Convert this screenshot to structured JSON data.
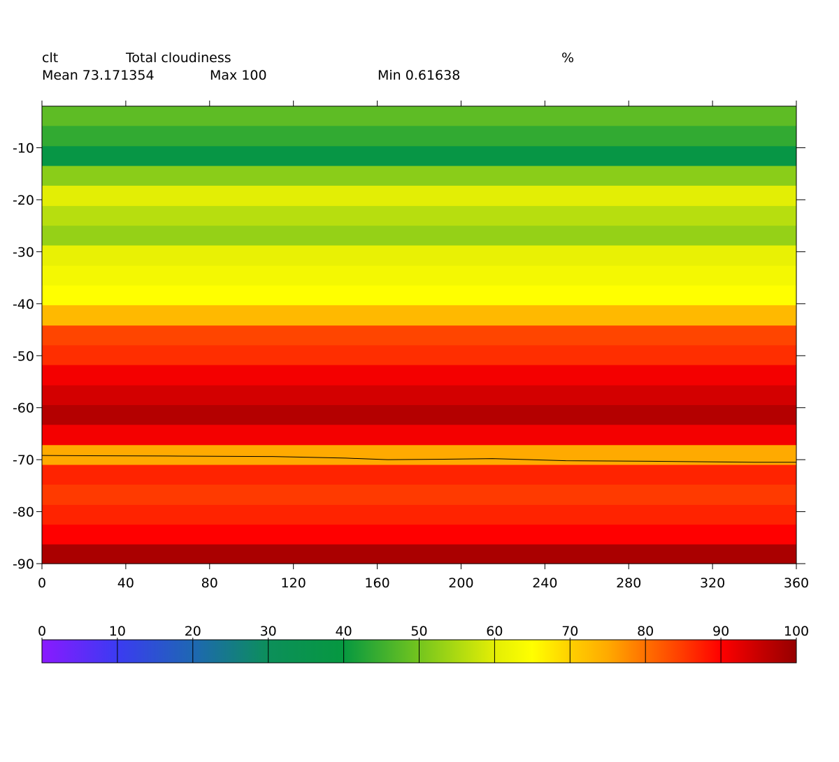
{
  "header": {
    "variable": "clt",
    "long_name": "Total cloudiness",
    "units": "%",
    "mean_label": "Mean 73.171354",
    "max_label": "Max 100",
    "min_label": "Min 0.61638"
  },
  "chart_data": {
    "type": "heatmap",
    "title": "Total cloudiness",
    "xlabel": "",
    "ylabel": "",
    "xlim": [
      0,
      360
    ],
    "ylim": [
      -90,
      -2
    ],
    "x_ticks": [
      0,
      40,
      80,
      120,
      160,
      200,
      240,
      280,
      320,
      360
    ],
    "y_ticks": [
      -10,
      -20,
      -30,
      -40,
      -50,
      -60,
      -70,
      -80,
      -90
    ],
    "bands": [
      {
        "lat_top": -2.0,
        "lat_bottom": -5.8,
        "value": 48
      },
      {
        "lat_top": -5.8,
        "lat_bottom": -9.7,
        "value": 44
      },
      {
        "lat_top": -9.7,
        "lat_bottom": -13.5,
        "value": 38
      },
      {
        "lat_top": -13.5,
        "lat_bottom": -17.3,
        "value": 52
      },
      {
        "lat_top": -17.3,
        "lat_bottom": -21.2,
        "value": 60
      },
      {
        "lat_top": -21.2,
        "lat_bottom": -25.0,
        "value": 56
      },
      {
        "lat_top": -25.0,
        "lat_bottom": -28.8,
        "value": 53
      },
      {
        "lat_top": -28.8,
        "lat_bottom": -32.7,
        "value": 61
      },
      {
        "lat_top": -32.7,
        "lat_bottom": -36.5,
        "value": 63
      },
      {
        "lat_top": -36.5,
        "lat_bottom": -40.3,
        "value": 65
      },
      {
        "lat_top": -40.3,
        "lat_bottom": -44.2,
        "value": 73
      },
      {
        "lat_top": -44.2,
        "lat_bottom": -48.0,
        "value": 84
      },
      {
        "lat_top": -48.0,
        "lat_bottom": -51.8,
        "value": 86
      },
      {
        "lat_top": -51.8,
        "lat_bottom": -55.7,
        "value": 91
      },
      {
        "lat_top": -55.7,
        "lat_bottom": -59.5,
        "value": 94
      },
      {
        "lat_top": -59.5,
        "lat_bottom": -63.3,
        "value": 97
      },
      {
        "lat_top": -63.3,
        "lat_bottom": -67.2,
        "value": 91
      },
      {
        "lat_top": -67.2,
        "lat_bottom": -71.0,
        "value": 75
      },
      {
        "lat_top": -71.0,
        "lat_bottom": -74.8,
        "value": 87
      },
      {
        "lat_top": -74.8,
        "lat_bottom": -78.7,
        "value": 85
      },
      {
        "lat_top": -78.7,
        "lat_bottom": -82.5,
        "value": 87
      },
      {
        "lat_top": -82.5,
        "lat_bottom": -86.3,
        "value": 90
      },
      {
        "lat_top": -86.3,
        "lat_bottom": -90.0,
        "value": 98
      }
    ],
    "coastline": [
      [
        0,
        -69.2
      ],
      [
        60,
        -69.3
      ],
      [
        110,
        -69.4
      ],
      [
        145,
        -69.7
      ],
      [
        165,
        -70.0
      ],
      [
        195,
        -69.9
      ],
      [
        215,
        -69.8
      ],
      [
        250,
        -70.2
      ],
      [
        290,
        -70.3
      ],
      [
        340,
        -70.5
      ],
      [
        360,
        -70.5
      ]
    ],
    "colorbar": {
      "ticks": [
        0,
        10,
        20,
        30,
        40,
        50,
        60,
        70,
        80,
        90,
        100
      ],
      "stops": [
        {
          "value": 0,
          "color": "#8a1aff"
        },
        {
          "value": 10,
          "color": "#3b3bf2"
        },
        {
          "value": 20,
          "color": "#1e67b3"
        },
        {
          "value": 30,
          "color": "#0c8f5a"
        },
        {
          "value": 40,
          "color": "#069840"
        },
        {
          "value": 50,
          "color": "#74c51e"
        },
        {
          "value": 60,
          "color": "#e3ee05"
        },
        {
          "value": 65,
          "color": "#ffff00"
        },
        {
          "value": 70,
          "color": "#ffd000"
        },
        {
          "value": 75,
          "color": "#ffaa00"
        },
        {
          "value": 80,
          "color": "#ff7000"
        },
        {
          "value": 85,
          "color": "#ff3a00"
        },
        {
          "value": 90,
          "color": "#ff0000"
        },
        {
          "value": 95,
          "color": "#c80000"
        },
        {
          "value": 100,
          "color": "#960000"
        }
      ]
    }
  }
}
